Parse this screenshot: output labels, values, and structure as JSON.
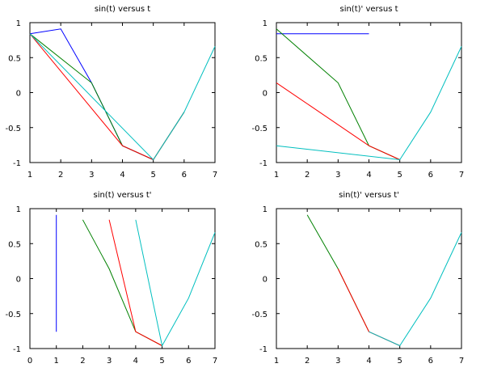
{
  "chart_data": [
    {
      "type": "line",
      "title": "sin(t) versus t",
      "xlim": [
        1,
        7
      ],
      "ylim": [
        -1,
        1
      ],
      "xticks": [
        "1",
        "2",
        "3",
        "4",
        "5",
        "6",
        "7"
      ],
      "yticks": [
        "1",
        "0.5",
        "0",
        "-0.5",
        "-1"
      ],
      "series": [
        {
          "name": "blue",
          "color": "#0000ff",
          "points": [
            [
              1,
              0.84
            ],
            [
              2,
              0.91
            ],
            [
              3,
              0.14
            ],
            [
              4,
              -0.76
            ],
            [
              5,
              -0.96
            ]
          ]
        },
        {
          "name": "green",
          "color": "#008000",
          "points": [
            [
              1,
              0.84
            ],
            [
              3,
              0.14
            ],
            [
              4,
              -0.76
            ],
            [
              5,
              -0.96
            ],
            [
              6,
              -0.28
            ]
          ]
        },
        {
          "name": "red",
          "color": "#ff0000",
          "points": [
            [
              1,
              0.84
            ],
            [
              4,
              -0.76
            ],
            [
              5,
              -0.96
            ],
            [
              6,
              -0.28
            ]
          ]
        },
        {
          "name": "cyan",
          "color": "#00bfbf",
          "points": [
            [
              1,
              0.84
            ],
            [
              5,
              -0.96
            ],
            [
              6,
              -0.28
            ],
            [
              7,
              0.66
            ]
          ]
        }
      ]
    },
    {
      "type": "line",
      "title": "sin(t)' versus t",
      "xlim": [
        1,
        7
      ],
      "ylim": [
        -1,
        1
      ],
      "xticks": [
        "1",
        "2",
        "3",
        "4",
        "5",
        "6",
        "7"
      ],
      "yticks": [
        "1",
        "0.5",
        "0",
        "-0.5",
        "-1"
      ],
      "series": [
        {
          "name": "blue",
          "color": "#0000ff",
          "points": [
            [
              1,
              0.84
            ],
            [
              4,
              0.84
            ]
          ]
        },
        {
          "name": "green",
          "color": "#008000",
          "points": [
            [
              1,
              0.91
            ],
            [
              3,
              0.14
            ],
            [
              4,
              -0.76
            ],
            [
              5,
              -0.96
            ]
          ]
        },
        {
          "name": "red",
          "color": "#ff0000",
          "points": [
            [
              1,
              0.14
            ],
            [
              4,
              -0.76
            ],
            [
              5,
              -0.96
            ]
          ]
        },
        {
          "name": "cyan",
          "color": "#00bfbf",
          "points": [
            [
              1,
              -0.76
            ],
            [
              5,
              -0.96
            ],
            [
              6,
              -0.28
            ],
            [
              7,
              0.66
            ]
          ]
        }
      ]
    },
    {
      "type": "line",
      "title": "sin(t) versus t'",
      "xlim": [
        0,
        7
      ],
      "ylim": [
        -1,
        1
      ],
      "xticks": [
        "0",
        "1",
        "2",
        "3",
        "4",
        "5",
        "6",
        "7"
      ],
      "yticks": [
        "1",
        "0.5",
        "0",
        "-0.5",
        "-1"
      ],
      "series": [
        {
          "name": "blue",
          "color": "#0000ff",
          "points": [
            [
              1,
              0.91
            ],
            [
              1,
              -0.76
            ]
          ]
        },
        {
          "name": "green",
          "color": "#008000",
          "points": [
            [
              2,
              0.84
            ],
            [
              3,
              0.14
            ],
            [
              4,
              -0.76
            ],
            [
              5,
              -0.96
            ]
          ]
        },
        {
          "name": "red",
          "color": "#ff0000",
          "points": [
            [
              3,
              0.84
            ],
            [
              4,
              -0.76
            ],
            [
              5,
              -0.96
            ]
          ]
        },
        {
          "name": "cyan",
          "color": "#00bfbf",
          "points": [
            [
              4,
              0.84
            ],
            [
              5,
              -0.96
            ],
            [
              6,
              -0.28
            ],
            [
              7,
              0.66
            ]
          ]
        }
      ]
    },
    {
      "type": "line",
      "title": "sin(t)' versus t'",
      "xlim": [
        1,
        7
      ],
      "ylim": [
        -1,
        1
      ],
      "xticks": [
        "1",
        "2",
        "3",
        "4",
        "5",
        "6",
        "7"
      ],
      "yticks": [
        "1",
        "0.5",
        "0",
        "-0.5",
        "-1"
      ],
      "series": [
        {
          "name": "green",
          "color": "#008000",
          "points": [
            [
              2,
              0.91
            ],
            [
              3,
              0.14
            ],
            [
              4,
              -0.76
            ]
          ]
        },
        {
          "name": "red",
          "color": "#ff0000",
          "points": [
            [
              3,
              0.14
            ],
            [
              4,
              -0.76
            ],
            [
              5,
              -0.96
            ]
          ]
        },
        {
          "name": "cyan",
          "color": "#00bfbf",
          "points": [
            [
              4,
              -0.76
            ],
            [
              5,
              -0.96
            ],
            [
              6,
              -0.28
            ],
            [
              7,
              0.66
            ]
          ]
        }
      ]
    }
  ]
}
